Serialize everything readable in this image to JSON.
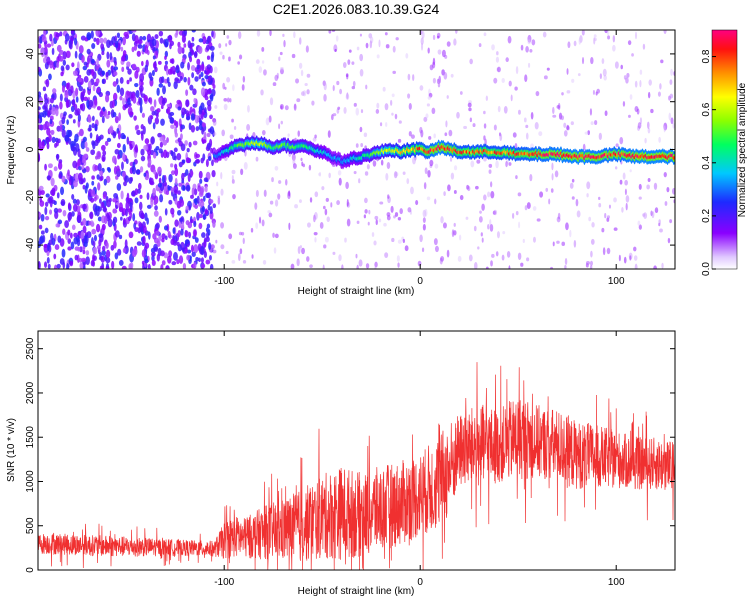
{
  "title": "C2E1.2026.083.10.39.G24",
  "chart_data": [
    {
      "type": "heatmap",
      "title": "",
      "xlabel": "Height of straight line (km)",
      "ylabel": "Frequency (Hz)",
      "xlim": [
        -195,
        130
      ],
      "ylim": [
        -50,
        50
      ],
      "xticks": [
        -100,
        0,
        100
      ],
      "xticklabels": [
        "-100",
        "0",
        "100"
      ],
      "yticks": [
        -40,
        -20,
        0,
        20,
        40
      ],
      "yticklabels": [
        "-40",
        "-20",
        "0",
        "20",
        "40"
      ],
      "trace": {
        "x": [
          -105,
          -95,
          -85,
          -80,
          -75,
          -70,
          -65,
          -60,
          -55,
          -50,
          -45,
          -40,
          -35,
          -30,
          -25,
          -20,
          -15,
          -10,
          -5,
          0,
          5,
          10,
          15,
          20,
          30,
          40,
          50,
          60,
          70,
          80,
          90,
          100,
          110,
          120,
          130
        ],
        "freq": [
          -3,
          1,
          3,
          2,
          1,
          2,
          1,
          2,
          0,
          -1,
          -3,
          -5,
          -4,
          -3,
          -2,
          -1,
          0,
          -1,
          0,
          0,
          -1,
          1,
          0,
          -1,
          -1,
          -1,
          -2,
          -2,
          -2,
          -3,
          -3,
          -2,
          -3,
          -3,
          -3
        ],
        "amplitude": [
          0.3,
          0.5,
          0.6,
          0.6,
          0.5,
          0.55,
          0.5,
          0.5,
          0.45,
          0.4,
          0.35,
          0.35,
          0.4,
          0.45,
          0.5,
          0.6,
          0.65,
          0.7,
          0.75,
          0.8,
          0.85,
          0.9,
          0.85,
          0.8,
          0.8,
          0.8,
          0.82,
          0.85,
          0.88,
          0.9,
          0.88,
          0.85,
          0.9,
          0.9,
          0.9
        ]
      },
      "colorbar": {
        "label": "Normalized spectral amplitude",
        "range": [
          0.0,
          0.9
        ],
        "ticks": [
          0.0,
          0.2,
          0.4,
          0.6,
          0.8
        ],
        "ticklabels": [
          "0.0",
          "0.2",
          "0.4",
          "0.6",
          "0.8"
        ]
      }
    },
    {
      "type": "line",
      "title": "",
      "xlabel": "Height of straight line (km)",
      "ylabel": "SNR (10 * v/v)",
      "xlim": [
        -195,
        130
      ],
      "ylim": [
        0,
        2700
      ],
      "xticks": [
        -100,
        0,
        100
      ],
      "xticklabels": [
        "-100",
        "0",
        "100"
      ],
      "yticks": [
        0,
        500,
        1000,
        1500,
        2000,
        2500
      ],
      "yticklabels": [
        "0",
        "500",
        "1000",
        "1500",
        "2000",
        "2500"
      ],
      "series": [
        {
          "name": "SNR",
          "color": "#f03030",
          "x": [
            -195,
            -180,
            -160,
            -140,
            -120,
            -105,
            -100,
            -95,
            -90,
            -80,
            -70,
            -60,
            -50,
            -40,
            -30,
            -20,
            -10,
            0,
            10,
            15,
            20,
            30,
            40,
            50,
            60,
            70,
            80,
            90,
            100,
            110,
            120,
            130
          ],
          "mean": [
            300,
            290,
            270,
            260,
            250,
            240,
            330,
            380,
            360,
            420,
            450,
            500,
            600,
            650,
            620,
            700,
            750,
            850,
            1000,
            1150,
            1350,
            1400,
            1400,
            1500,
            1450,
            1400,
            1300,
            1280,
            1250,
            1200,
            1200,
            1150
          ],
          "spread": [
            200,
            200,
            200,
            180,
            150,
            150,
            350,
            400,
            380,
            500,
            600,
            700,
            800,
            900,
            800,
            800,
            800,
            800,
            900,
            900,
            700,
            800,
            700,
            800,
            700,
            700,
            650,
            600,
            550,
            500,
            500,
            500
          ]
        }
      ]
    }
  ]
}
